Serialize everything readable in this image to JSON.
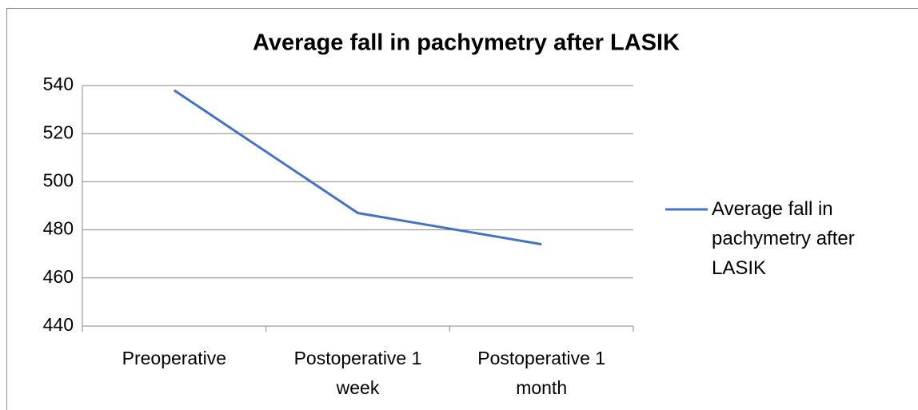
{
  "chart_data": {
    "type": "line",
    "title": "Average fall in pachymetry after LASIK",
    "categories": [
      "Preoperative",
      "Postoperative 1 week",
      "Postoperative 1 month"
    ],
    "series": [
      {
        "name": "Average fall in pachymetry after LASIK",
        "color": "#4472c4",
        "values": [
          538,
          487,
          474
        ]
      }
    ],
    "ylim": [
      440,
      540
    ],
    "yticks": [
      440,
      460,
      480,
      500,
      520,
      540
    ],
    "grid": true,
    "legend": "right"
  }
}
